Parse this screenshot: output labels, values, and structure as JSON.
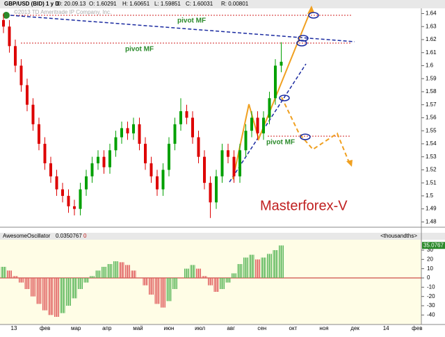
{
  "header": {
    "symbol": "GBP/USD (BID) 1 у D",
    "date": "D: 20.09.13",
    "open": "O: 1.60291",
    "high": "H: 1.60651",
    "low": "L: 1.59851",
    "close": "C: 1.60031",
    "range": "R: 0.00801"
  },
  "watermark": "©2013 TD Ameritrade IP Company, Inc.",
  "x_labels": [
    "13",
    "фев",
    "мар",
    "апр",
    "май",
    "июн",
    "июл",
    "авг",
    "сен",
    "окт",
    "ноя",
    "дек",
    "14",
    "фев"
  ],
  "chart_data": [
    {
      "type": "candlestick",
      "up_color": "#00a000",
      "down_color": "#dd0000",
      "candles": [
        [
          1.635,
          1.64,
          1.625,
          1.63
        ],
        [
          1.63,
          1.635,
          1.61,
          1.615
        ],
        [
          1.615,
          1.62,
          1.595,
          1.6
        ],
        [
          1.6,
          1.605,
          1.58,
          1.585
        ],
        [
          1.585,
          1.59,
          1.565,
          1.57
        ],
        [
          1.57,
          1.575,
          1.55,
          1.555
        ],
        [
          1.555,
          1.56,
          1.535,
          1.54
        ],
        [
          1.54,
          1.545,
          1.52,
          1.525
        ],
        [
          1.525,
          1.53,
          1.51,
          1.515
        ],
        [
          1.515,
          1.52,
          1.5,
          1.505
        ],
        [
          1.505,
          1.51,
          1.495,
          1.5
        ],
        [
          1.5,
          1.505,
          1.487,
          1.492
        ],
        [
          1.492,
          1.497,
          1.485,
          1.49
        ],
        [
          1.49,
          1.51,
          1.485,
          1.505
        ],
        [
          1.505,
          1.52,
          1.5,
          1.515
        ],
        [
          1.515,
          1.53,
          1.51,
          1.525
        ],
        [
          1.525,
          1.535,
          1.52,
          1.53
        ],
        [
          1.53,
          1.535,
          1.517,
          1.522
        ],
        [
          1.522,
          1.54,
          1.517,
          1.535
        ],
        [
          1.535,
          1.55,
          1.53,
          1.545
        ],
        [
          1.545,
          1.557,
          1.54,
          1.552
        ],
        [
          1.552,
          1.557,
          1.543,
          1.548
        ],
        [
          1.548,
          1.56,
          1.543,
          1.555
        ],
        [
          1.555,
          1.56,
          1.535,
          1.54
        ],
        [
          1.54,
          1.545,
          1.52,
          1.525
        ],
        [
          1.525,
          1.53,
          1.51,
          1.515
        ],
        [
          1.515,
          1.52,
          1.5,
          1.505
        ],
        [
          1.505,
          1.525,
          1.5,
          1.52
        ],
        [
          1.52,
          1.545,
          1.515,
          1.54
        ],
        [
          1.54,
          1.56,
          1.535,
          1.555
        ],
        [
          1.555,
          1.575,
          1.55,
          1.565
        ],
        [
          1.565,
          1.57,
          1.555,
          1.56
        ],
        [
          1.56,
          1.565,
          1.54,
          1.545
        ],
        [
          1.545,
          1.55,
          1.525,
          1.53
        ],
        [
          1.53,
          1.535,
          1.505,
          1.51
        ],
        [
          1.51,
          1.515,
          1.483,
          1.495
        ],
        [
          1.495,
          1.52,
          1.49,
          1.515
        ],
        [
          1.515,
          1.54,
          1.51,
          1.535
        ],
        [
          1.535,
          1.54,
          1.525,
          1.53
        ],
        [
          1.53,
          1.535,
          1.51,
          1.515
        ],
        [
          1.515,
          1.54,
          1.51,
          1.535
        ],
        [
          1.535,
          1.555,
          1.53,
          1.55
        ],
        [
          1.55,
          1.565,
          1.545,
          1.56
        ],
        [
          1.56,
          1.565,
          1.543,
          1.548
        ],
        [
          1.548,
          1.565,
          1.543,
          1.56
        ],
        [
          1.56,
          1.58,
          1.555,
          1.575
        ],
        [
          1.575,
          1.605,
          1.57,
          1.6
        ],
        [
          1.6,
          1.618,
          1.595,
          1.603
        ]
      ],
      "ylim": [
        1.477,
        1.644
      ],
      "yticks": [
        1.48,
        1.49,
        1.5,
        1.51,
        1.52,
        1.53,
        1.54,
        1.55,
        1.56,
        1.57,
        1.58,
        1.59,
        1.6,
        1.61,
        1.62,
        1.63,
        1.64
      ],
      "annotations": [
        "pivot MF",
        "pivot MF",
        "pivot MF"
      ],
      "brand": "Masterforex-V"
    },
    {
      "type": "bar",
      "title": "AwesomeOscillator",
      "readout": "0.0350767",
      "flag": "0",
      "units": "<thousandths>",
      "up_color": "#5cb85c",
      "down_color": "#e06060",
      "values": [
        12,
        8,
        2,
        -5,
        -12,
        -20,
        -28,
        -35,
        -40,
        -42,
        -38,
        -30,
        -22,
        -12,
        -5,
        2,
        8,
        12,
        15,
        18,
        17,
        14,
        8,
        0,
        -8,
        -18,
        -28,
        -32,
        -25,
        -12,
        0,
        10,
        14,
        10,
        2,
        -8,
        -15,
        -12,
        -5,
        5,
        15,
        22,
        25,
        20,
        22,
        26,
        30,
        35.0767
      ],
      "ylim": [
        -51,
        39
      ],
      "yticks": [
        30,
        20,
        10,
        0,
        -10,
        -20,
        -30,
        -40
      ]
    }
  ]
}
